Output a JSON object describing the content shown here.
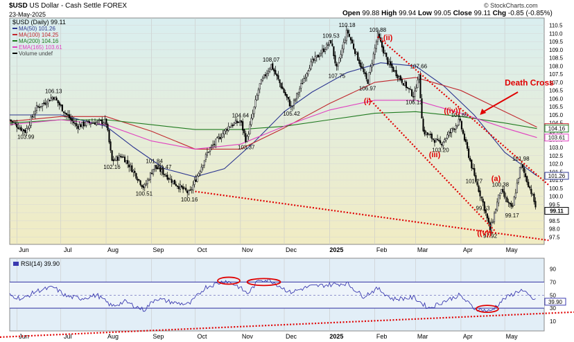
{
  "header": {
    "symbol": "$USD",
    "name": "US Dollar - Cash Settle",
    "exchange": "FOREX",
    "date": "23-May-2025",
    "watermark": "© StockCharts.com",
    "ohlc": [
      {
        "k": "Open",
        "v": "99.88"
      },
      {
        "k": "High",
        "v": "99.94"
      },
      {
        "k": "Low",
        "v": "99.05"
      },
      {
        "k": "Close",
        "v": "99.11"
      },
      {
        "k": "Chg",
        "v": "-0.85 (-0.85%)"
      }
    ]
  },
  "colors": {
    "price_bg": "#f1ecc3",
    "rsi_bg": "#e2eef7",
    "candle": "#000000",
    "ma50": "#2b3590",
    "ma100": "#c0272d",
    "ma200": "#1f7a1f",
    "ema165": "#e040c0",
    "annotation": "#e00000",
    "rsi_line": "#3a3ab0",
    "rsi_band": "#3030a0"
  },
  "chart_data": [
    {
      "type": "candlestick",
      "title": "$USD (Daily) 99.11",
      "legend": [
        {
          "name": "MA(50) 101.26",
          "color": "#2b3590"
        },
        {
          "name": "MA(100) 104.25",
          "color": "#c0272d"
        },
        {
          "name": "MA(200) 104.16",
          "color": "#1f7a1f"
        },
        {
          "name": "EMA(165) 103.61",
          "color": "#e040c0"
        },
        {
          "name": "Volume undef",
          "color": "#000000"
        }
      ],
      "y_ticks": [
        "110.5",
        "110.0",
        "109.5",
        "109.0",
        "108.5",
        "108.0",
        "107.5",
        "107.0",
        "106.5",
        "106.0",
        "105.5",
        "105.0",
        "104.5",
        "104.0",
        "103.5",
        "103.0",
        "102.5",
        "102.0",
        "101.5",
        "101.0",
        "100.5",
        "100.0",
        "99.5",
        "99.0",
        "98.5",
        "98.0",
        "97.5"
      ],
      "ylim": [
        97.5,
        110.5
      ],
      "x_labels": [
        "Jun",
        "Jul",
        "Aug",
        "Sep",
        "Oct",
        "Nov",
        "Dec",
        "2025",
        "Feb",
        "Mar",
        "Apr",
        "May"
      ],
      "close_path": [
        {
          "d": "2024-05-27",
          "v": 104.7
        },
        {
          "d": "2024-06-03",
          "v": 104.2
        },
        {
          "d": "2024-06-07",
          "v": 103.99
        },
        {
          "d": "2024-06-14",
          "v": 105.4
        },
        {
          "d": "2024-06-26",
          "v": 106.13
        },
        {
          "d": "2024-07-05",
          "v": 105.0
        },
        {
          "d": "2024-07-12",
          "v": 104.3
        },
        {
          "d": "2024-07-19",
          "v": 104.5
        },
        {
          "d": "2024-08-01",
          "v": 104.6
        },
        {
          "d": "2024-08-05",
          "v": 102.16
        },
        {
          "d": "2024-08-12",
          "v": 102.5
        },
        {
          "d": "2024-08-20",
          "v": 101.5
        },
        {
          "d": "2024-08-27",
          "v": 100.51
        },
        {
          "d": "2024-09-03",
          "v": 101.84
        },
        {
          "d": "2024-09-09",
          "v": 101.47
        },
        {
          "d": "2024-09-17",
          "v": 100.8
        },
        {
          "d": "2024-09-27",
          "v": 100.16
        },
        {
          "d": "2024-10-10",
          "v": 102.8
        },
        {
          "d": "2024-10-24",
          "v": 104.3
        },
        {
          "d": "2024-11-01",
          "v": 104.64
        },
        {
          "d": "2024-11-05",
          "v": 103.37
        },
        {
          "d": "2024-11-14",
          "v": 106.8
        },
        {
          "d": "2024-11-22",
          "v": 108.07
        },
        {
          "d": "2024-12-06",
          "v": 105.42
        },
        {
          "d": "2024-12-18",
          "v": 108.0
        },
        {
          "d": "2025-01-02",
          "v": 109.53
        },
        {
          "d": "2025-01-06",
          "v": 107.75
        },
        {
          "d": "2025-01-13",
          "v": 110.18
        },
        {
          "d": "2025-01-27",
          "v": 106.97
        },
        {
          "d": "2025-02-03",
          "v": 109.88
        },
        {
          "d": "2025-02-10",
          "v": 108.2
        },
        {
          "d": "2025-02-28",
          "v": 106.13
        },
        {
          "d": "2025-03-03",
          "v": 107.66
        },
        {
          "d": "2025-03-06",
          "v": 104.0
        },
        {
          "d": "2025-03-18",
          "v": 103.2
        },
        {
          "d": "2025-03-31",
          "v": 104.65
        },
        {
          "d": "2025-04-10",
          "v": 101.27
        },
        {
          "d": "2025-04-16",
          "v": 99.63
        },
        {
          "d": "2025-04-21",
          "v": 97.92
        },
        {
          "d": "2025-04-28",
          "v": 100.38
        },
        {
          "d": "2025-05-06",
          "v": 99.17
        },
        {
          "d": "2025-05-12",
          "v": 101.98
        },
        {
          "d": "2025-05-19",
          "v": 100.3
        },
        {
          "d": "2025-05-23",
          "v": 99.11
        }
      ],
      "peak_labels": [
        {
          "d": "2024-06-26",
          "v": 106.13,
          "text": "106.13",
          "pos": "above"
        },
        {
          "d": "2024-06-07",
          "v": 103.99,
          "text": "103.99",
          "pos": "below"
        },
        {
          "d": "2024-08-05",
          "v": 102.16,
          "text": "102.16",
          "pos": "below"
        },
        {
          "d": "2024-08-27",
          "v": 100.51,
          "text": "100.51",
          "pos": "below"
        },
        {
          "d": "2024-09-03",
          "v": 101.84,
          "text": "101.84",
          "pos": "above"
        },
        {
          "d": "2024-09-09",
          "v": 101.47,
          "text": "101.47",
          "pos": "above"
        },
        {
          "d": "2024-09-27",
          "v": 100.16,
          "text": "100.16",
          "pos": "below"
        },
        {
          "d": "2024-11-01",
          "v": 104.64,
          "text": "104.64",
          "pos": "above"
        },
        {
          "d": "2024-11-05",
          "v": 103.37,
          "text": "103.37",
          "pos": "below"
        },
        {
          "d": "2024-11-22",
          "v": 108.07,
          "text": "108.07",
          "pos": "above"
        },
        {
          "d": "2024-12-06",
          "v": 105.42,
          "text": "105.42",
          "pos": "below"
        },
        {
          "d": "2025-01-02",
          "v": 109.53,
          "text": "109.53",
          "pos": "above"
        },
        {
          "d": "2025-01-06",
          "v": 107.75,
          "text": "107.75",
          "pos": "below"
        },
        {
          "d": "2025-01-13",
          "v": 110.18,
          "text": "110.18",
          "pos": "above"
        },
        {
          "d": "2025-01-27",
          "v": 106.97,
          "text": "106.97",
          "pos": "below"
        },
        {
          "d": "2025-02-03",
          "v": 109.88,
          "text": "109.88",
          "pos": "above"
        },
        {
          "d": "2025-02-28",
          "v": 106.13,
          "text": "106.13",
          "pos": "below"
        },
        {
          "d": "2025-03-03",
          "v": 107.66,
          "text": "107.66",
          "pos": "above"
        },
        {
          "d": "2025-03-18",
          "v": 103.2,
          "text": "103.20",
          "pos": "below"
        },
        {
          "d": "2025-03-31",
          "v": 104.65,
          "text": "104.65",
          "pos": "above"
        },
        {
          "d": "2025-04-10",
          "v": 101.27,
          "text": "101.27",
          "pos": "below"
        },
        {
          "d": "2025-04-16",
          "v": 99.63,
          "text": "99.63",
          "pos": "below"
        },
        {
          "d": "2025-04-21",
          "v": 97.92,
          "text": "97.92",
          "pos": "below"
        },
        {
          "d": "2025-04-28",
          "v": 100.38,
          "text": "100.38",
          "pos": "above"
        },
        {
          "d": "2025-05-06",
          "v": 99.17,
          "text": "99.17",
          "pos": "below"
        },
        {
          "d": "2025-05-12",
          "v": 101.98,
          "text": "101.98",
          "pos": "above"
        }
      ],
      "moving_averages": [
        {
          "name": "MA(50)",
          "color": "#2b3590",
          "points": [
            {
              "d": "2024-05-27",
              "v": 105.0
            },
            {
              "d": "2024-07-01",
              "v": 105.0
            },
            {
              "d": "2024-08-01",
              "v": 104.3
            },
            {
              "d": "2024-08-20",
              "v": 103.0
            },
            {
              "d": "2024-09-10",
              "v": 101.7
            },
            {
              "d": "2024-10-01",
              "v": 101.2
            },
            {
              "d": "2024-10-21",
              "v": 101.7
            },
            {
              "d": "2024-11-10",
              "v": 103.3
            },
            {
              "d": "2024-12-01",
              "v": 105.2
            },
            {
              "d": "2024-12-20",
              "v": 106.4
            },
            {
              "d": "2025-01-13",
              "v": 107.6
            },
            {
              "d": "2025-02-05",
              "v": 108.2
            },
            {
              "d": "2025-03-01",
              "v": 108.0
            },
            {
              "d": "2025-03-20",
              "v": 106.8
            },
            {
              "d": "2025-04-10",
              "v": 105.0
            },
            {
              "d": "2025-05-01",
              "v": 102.7
            },
            {
              "d": "2025-05-23",
              "v": 101.26
            }
          ]
        },
        {
          "name": "MA(100)",
          "color": "#c0272d",
          "points": [
            {
              "d": "2024-05-27",
              "v": 104.6
            },
            {
              "d": "2024-07-01",
              "v": 104.9
            },
            {
              "d": "2024-08-01",
              "v": 104.9
            },
            {
              "d": "2024-09-01",
              "v": 104.0
            },
            {
              "d": "2024-10-01",
              "v": 102.9
            },
            {
              "d": "2024-11-01",
              "v": 102.9
            },
            {
              "d": "2024-12-01",
              "v": 104.2
            },
            {
              "d": "2025-01-01",
              "v": 105.7
            },
            {
              "d": "2025-02-01",
              "v": 107.0
            },
            {
              "d": "2025-03-01",
              "v": 107.3
            },
            {
              "d": "2025-04-01",
              "v": 106.5
            },
            {
              "d": "2025-05-01",
              "v": 105.2
            },
            {
              "d": "2025-05-23",
              "v": 104.25
            }
          ]
        },
        {
          "name": "MA(200)",
          "color": "#1f7a1f",
          "points": [
            {
              "d": "2024-05-27",
              "v": 104.5
            },
            {
              "d": "2024-07-01",
              "v": 104.7
            },
            {
              "d": "2024-08-01",
              "v": 104.7
            },
            {
              "d": "2024-09-01",
              "v": 104.4
            },
            {
              "d": "2024-10-01",
              "v": 104.1
            },
            {
              "d": "2024-11-01",
              "v": 104.1
            },
            {
              "d": "2024-12-01",
              "v": 104.3
            },
            {
              "d": "2025-01-01",
              "v": 104.7
            },
            {
              "d": "2025-02-01",
              "v": 105.1
            },
            {
              "d": "2025-03-01",
              "v": 105.2
            },
            {
              "d": "2025-04-01",
              "v": 104.9
            },
            {
              "d": "2025-05-01",
              "v": 104.5
            },
            {
              "d": "2025-05-23",
              "v": 104.16
            }
          ]
        },
        {
          "name": "EMA(165)",
          "color": "#e040c0",
          "points": [
            {
              "d": "2024-05-27",
              "v": 104.4
            },
            {
              "d": "2024-07-01",
              "v": 104.7
            },
            {
              "d": "2024-08-01",
              "v": 104.4
            },
            {
              "d": "2024-09-01",
              "v": 103.4
            },
            {
              "d": "2024-10-01",
              "v": 102.9
            },
            {
              "d": "2024-11-01",
              "v": 103.2
            },
            {
              "d": "2024-12-01",
              "v": 104.3
            },
            {
              "d": "2025-01-01",
              "v": 105.3
            },
            {
              "d": "2025-02-01",
              "v": 105.9
            },
            {
              "d": "2025-03-01",
              "v": 105.9
            },
            {
              "d": "2025-04-01",
              "v": 105.1
            },
            {
              "d": "2025-05-01",
              "v": 104.2
            },
            {
              "d": "2025-05-23",
              "v": 103.61
            }
          ]
        }
      ],
      "price_axis_badges": [
        {
          "text": "104.25",
          "v": 104.25,
          "color": "#c0272d"
        },
        {
          "text": "104.16",
          "v": 104.16,
          "color": "#1f7a1f"
        },
        {
          "text": "103.61",
          "v": 103.61,
          "color": "#e040c0"
        },
        {
          "text": "101.26",
          "v": 101.26,
          "color": "#2b3590"
        },
        {
          "text": "99.11",
          "v": 99.11,
          "color": "#000000"
        }
      ],
      "trendlines": [
        {
          "from": {
            "d": "2024-10-01",
            "v": 100.3
          },
          "to": {
            "d": "2025-05-31",
            "v": 97.3
          }
        },
        {
          "from": {
            "d": "2025-01-28",
            "v": 106.0
          },
          "to": {
            "d": "2025-04-24",
            "v": 97.9
          }
        },
        {
          "from": {
            "d": "2025-02-03",
            "v": 109.8
          },
          "to": {
            "d": "2025-05-31",
            "v": 100.7
          }
        }
      ],
      "wave_labels": [
        {
          "text": "(ii)",
          "d": "2025-02-10",
          "v": 109.6
        },
        {
          "text": "(i)",
          "d": "2025-01-27",
          "v": 105.7
        },
        {
          "text": "(iii)",
          "d": "2025-03-14",
          "v": 102.4
        },
        {
          "text": "((iv))",
          "d": "2025-03-26",
          "v": 105.1
        },
        {
          "text": "((v))",
          "d": "2025-04-17",
          "v": 97.6
        },
        {
          "text": "(a)",
          "d": "2025-04-25",
          "v": 100.95
        }
      ],
      "callout": {
        "text": "Death Cross",
        "d": "2025-05-01",
        "v": 106.8,
        "arrow_to": {
          "d": "2025-04-14",
          "v": 105.0
        }
      }
    },
    {
      "type": "line",
      "title": "RSI(14) 39.90",
      "ylim": [
        0,
        100
      ],
      "y_ticks": [
        "90",
        "70",
        "50",
        "30",
        "10"
      ],
      "bands": [
        70,
        30
      ],
      "midline": 50,
      "current_badge": "39.90",
      "series": [
        {
          "points": [
            {
              "d": "2024-05-27",
              "v": 50
            },
            {
              "d": "2024-06-05",
              "v": 44
            },
            {
              "d": "2024-06-14",
              "v": 56
            },
            {
              "d": "2024-06-26",
              "v": 62
            },
            {
              "d": "2024-07-05",
              "v": 48
            },
            {
              "d": "2024-07-15",
              "v": 45
            },
            {
              "d": "2024-07-26",
              "v": 50
            },
            {
              "d": "2024-08-05",
              "v": 33
            },
            {
              "d": "2024-08-14",
              "v": 40
            },
            {
              "d": "2024-08-27",
              "v": 27
            },
            {
              "d": "2024-09-04",
              "v": 45
            },
            {
              "d": "2024-09-17",
              "v": 38
            },
            {
              "d": "2024-09-27",
              "v": 36
            },
            {
              "d": "2024-10-08",
              "v": 62
            },
            {
              "d": "2024-10-22",
              "v": 72
            },
            {
              "d": "2024-10-30",
              "v": 64
            },
            {
              "d": "2024-11-06",
              "v": 52
            },
            {
              "d": "2024-11-14",
              "v": 74
            },
            {
              "d": "2024-11-22",
              "v": 72
            },
            {
              "d": "2024-12-05",
              "v": 54
            },
            {
              "d": "2024-12-18",
              "v": 63
            },
            {
              "d": "2025-01-02",
              "v": 66
            },
            {
              "d": "2025-01-13",
              "v": 68
            },
            {
              "d": "2025-01-24",
              "v": 48
            },
            {
              "d": "2025-02-03",
              "v": 60
            },
            {
              "d": "2025-02-13",
              "v": 44
            },
            {
              "d": "2025-02-28",
              "v": 46
            },
            {
              "d": "2025-03-10",
              "v": 30
            },
            {
              "d": "2025-03-20",
              "v": 40
            },
            {
              "d": "2025-03-31",
              "v": 50
            },
            {
              "d": "2025-04-10",
              "v": 30
            },
            {
              "d": "2025-04-21",
              "v": 25
            },
            {
              "d": "2025-05-01",
              "v": 45
            },
            {
              "d": "2025-05-12",
              "v": 58
            },
            {
              "d": "2025-05-23",
              "v": 39.9
            }
          ]
        }
      ],
      "trendline": {
        "from": {
          "d": "2024-05-01",
          "v": -10
        },
        "to": {
          "d": "2025-05-31",
          "v": 24
        }
      }
    }
  ]
}
